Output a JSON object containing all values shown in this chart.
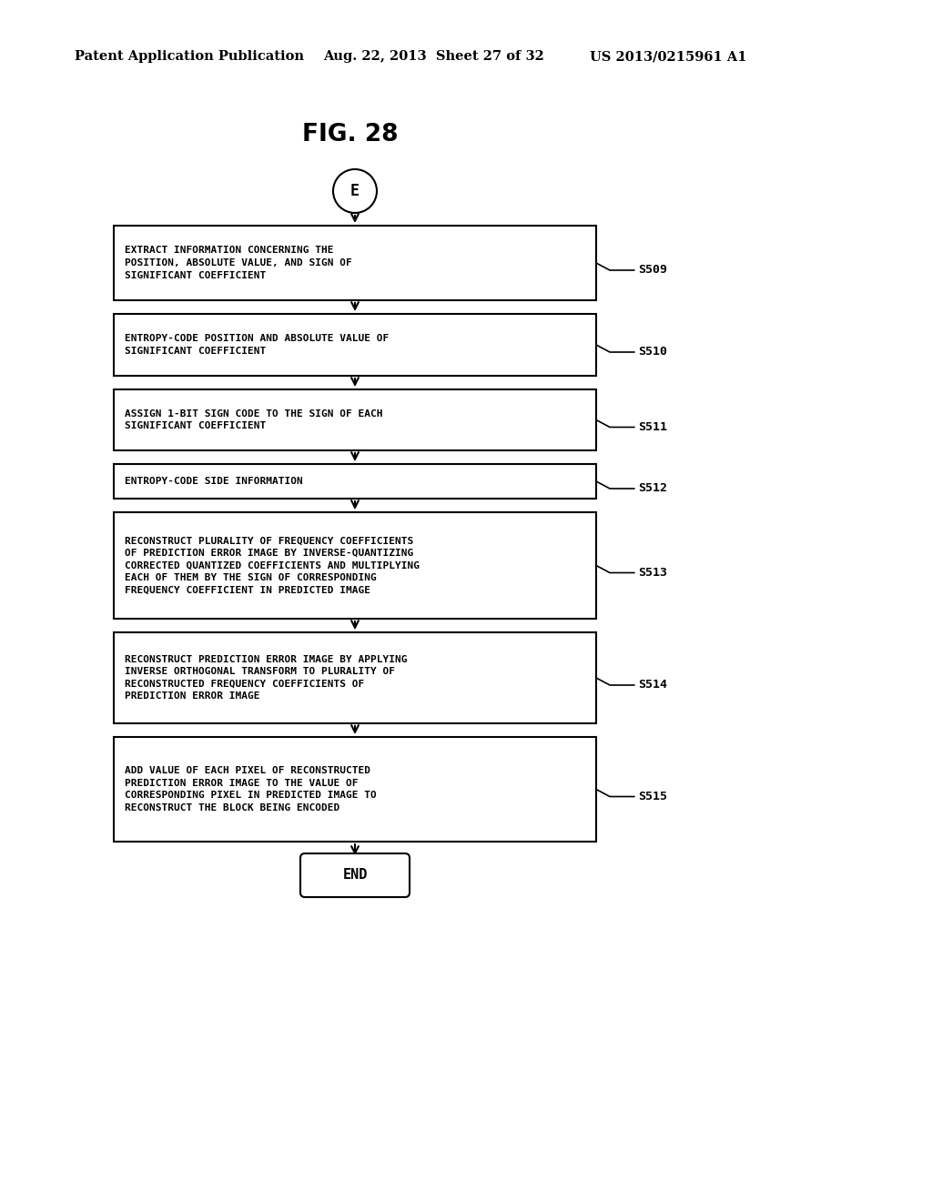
{
  "bg_color": "#ffffff",
  "header_left": "Patent Application Publication",
  "header_mid": "Aug. 22, 2013  Sheet 27 of 32",
  "header_right": "US 2013/0215961 A1",
  "fig_title": "FIG. 28",
  "start_label": "E",
  "end_label": "END",
  "boxes": [
    {
      "label": "EXTRACT INFORMATION CONCERNING THE\nPOSITION, ABSOLUTE VALUE, AND SIGN OF\nSIGNIFICANT COEFFICIENT",
      "step": "S509",
      "lines": 3
    },
    {
      "label": "ENTROPY-CODE POSITION AND ABSOLUTE VALUE OF\nSIGNIFICANT COEFFICIENT",
      "step": "S510",
      "lines": 2
    },
    {
      "label": "ASSIGN 1-BIT SIGN CODE TO THE SIGN OF EACH\nSIGNIFICANT COEFFICIENT",
      "step": "S511",
      "lines": 2
    },
    {
      "label": "ENTROPY-CODE SIDE INFORMATION",
      "step": "S512",
      "lines": 1
    },
    {
      "label": "RECONSTRUCT PLURALITY OF FREQUENCY COEFFICIENTS\nOF PREDICTION ERROR IMAGE BY INVERSE-QUANTIZING\nCORRECTED QUANTIZED COEFFICIENTS AND MULTIPLYING\nEACH OF THEM BY THE SIGN OF CORRESPONDING\nFREQUENCY COEFFICIENT IN PREDICTED IMAGE",
      "step": "S513",
      "lines": 5
    },
    {
      "label": "RECONSTRUCT PREDICTION ERROR IMAGE BY APPLYING\nINVERSE ORTHOGONAL TRANSFORM TO PLURALITY OF\nRECONSTRUCTED FREQUENCY COEFFICIENTS OF\nPREDICTION ERROR IMAGE",
      "step": "S514",
      "lines": 4
    },
    {
      "label": "ADD VALUE OF EACH PIXEL OF RECONSTRUCTED\nPREDICTION ERROR IMAGE TO THE VALUE OF\nCORRESPONDING PIXEL IN PREDICTED IMAGE TO\nRECONSTRUCT THE BLOCK BEING ENCODED",
      "step": "S515",
      "lines": 4
    }
  ]
}
